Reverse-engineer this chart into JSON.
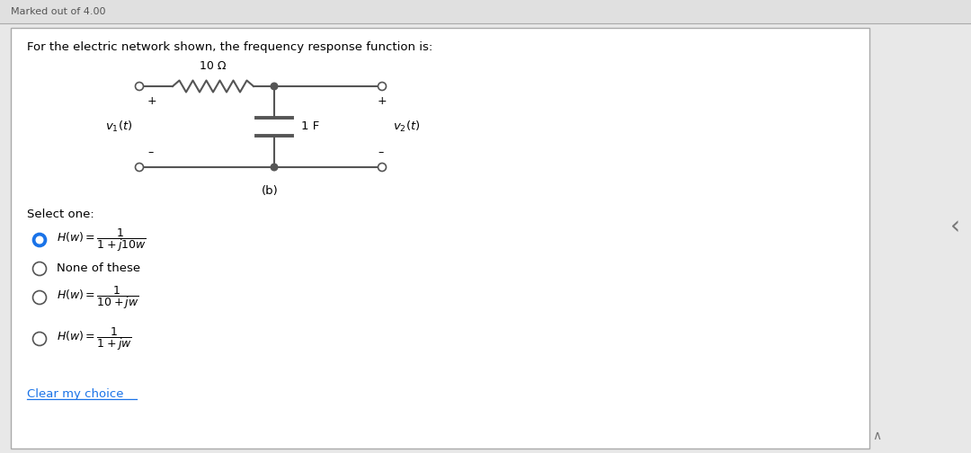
{
  "title": "For the electric network shown, the frequency response function is:",
  "header_text": "Marked out of 4.00",
  "resistor_label": "10 Ω",
  "capacitor_label": "1 F",
  "subtitle": "(b)",
  "select_one": "Select one:",
  "options": [
    {
      "selected": true,
      "text": "H(w) = 1/(1+j10w)"
    },
    {
      "selected": false,
      "text": "None of these"
    },
    {
      "selected": false,
      "text": "H(w) = 1/(10+jw)"
    },
    {
      "selected": false,
      "text": "H(w) = 1/(1+jw)"
    }
  ],
  "clear_text": "Clear my choice",
  "bg_color": "#ffffff",
  "border_color": "#cccccc",
  "text_color": "#000000",
  "selected_color": "#1a73e8",
  "circuit_color": "#555555",
  "page_bg": "#e8e8e8"
}
